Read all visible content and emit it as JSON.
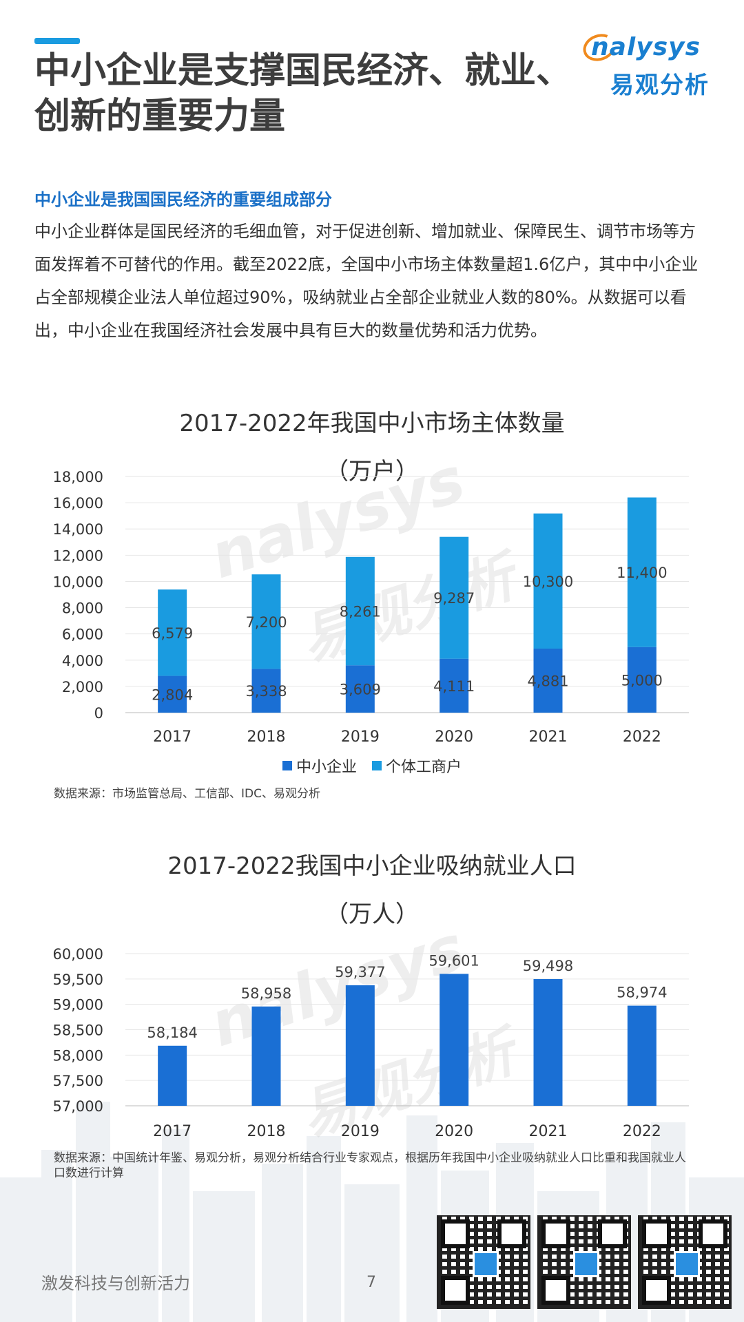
{
  "header": {
    "title": "中小企业是支撑国民经济、就业、创新的重要力量",
    "logo_en": "nalysys",
    "logo_cn": "易观分析"
  },
  "intro": {
    "subhead": "中小企业是我国国民经济的重要组成部分",
    "paragraph": "中小企业群体是国民经济的毛细血管，对于促进创新、增加就业、保障民生、调节市场等方面发挥着不可替代的作用。截至2022底，全国中小市场主体数量超1.6亿户，其中中小企业占全部规模企业法人单位超过90%，吸纳就业占全部企业就业人数的80%。从数据可以看出，中小企业在我国经济社会发展中具有巨大的数量优势和活力优势。"
  },
  "chart_data": [
    {
      "type": "bar",
      "stacked": true,
      "title": "2017-2022年我国中小市场主体数量",
      "subtitle": "（万户）",
      "categories": [
        "2017",
        "2018",
        "2019",
        "2020",
        "2021",
        "2022"
      ],
      "series": [
        {
          "name": "中小企业",
          "values": [
            2804,
            3338,
            3609,
            4111,
            4881,
            5000
          ],
          "labels": [
            "2,804",
            "3,338",
            "3,609",
            "4,111",
            "4,881",
            "5,000"
          ],
          "color": "#1a6fd4"
        },
        {
          "name": "个体工商户",
          "values": [
            6579,
            7200,
            8261,
            9287,
            10300,
            11400
          ],
          "labels": [
            "6,579",
            "7,200",
            "8,261",
            "9,287",
            "10,300",
            "11,400"
          ],
          "color": "#1a9be0"
        }
      ],
      "ylim": [
        0,
        18000
      ],
      "yticks": [
        0,
        2000,
        4000,
        6000,
        8000,
        10000,
        12000,
        14000,
        16000,
        18000
      ],
      "ytick_labels": [
        "0",
        "2,000",
        "4,000",
        "6,000",
        "8,000",
        "10,000",
        "12,000",
        "14,000",
        "16,000",
        "18,000"
      ],
      "grid": true,
      "legend": "bottom",
      "source": "数据来源：市场监管总局、工信部、IDC、易观分析"
    },
    {
      "type": "bar",
      "title": "2017-2022我国中小企业吸纳就业人口",
      "subtitle": "（万人）",
      "categories": [
        "2017",
        "2018",
        "2019",
        "2020",
        "2021",
        "2022"
      ],
      "values": [
        58184,
        58958,
        59377,
        59601,
        59498,
        58974
      ],
      "labels": [
        "58,184",
        "58,958",
        "59,377",
        "59,601",
        "59,498",
        "58,974"
      ],
      "color": "#1a6fd4",
      "ylim": [
        57000,
        60000
      ],
      "yticks": [
        57000,
        57500,
        58000,
        58500,
        59000,
        59500,
        60000
      ],
      "ytick_labels": [
        "57,000",
        "57,500",
        "58,000",
        "58,500",
        "59,000",
        "59,500",
        "60,000"
      ],
      "grid": true,
      "source": "数据来源：中国统计年鉴、易观分析，易观分析结合行业专家观点，根据历年我国中小企业吸纳就业人口比重和我国就业人口数进行计算"
    }
  ],
  "footer": {
    "slogan": "激发科技与创新活力",
    "page": "7"
  },
  "icons": [
    "qr-code-icon",
    "logo-arc-icon"
  ]
}
